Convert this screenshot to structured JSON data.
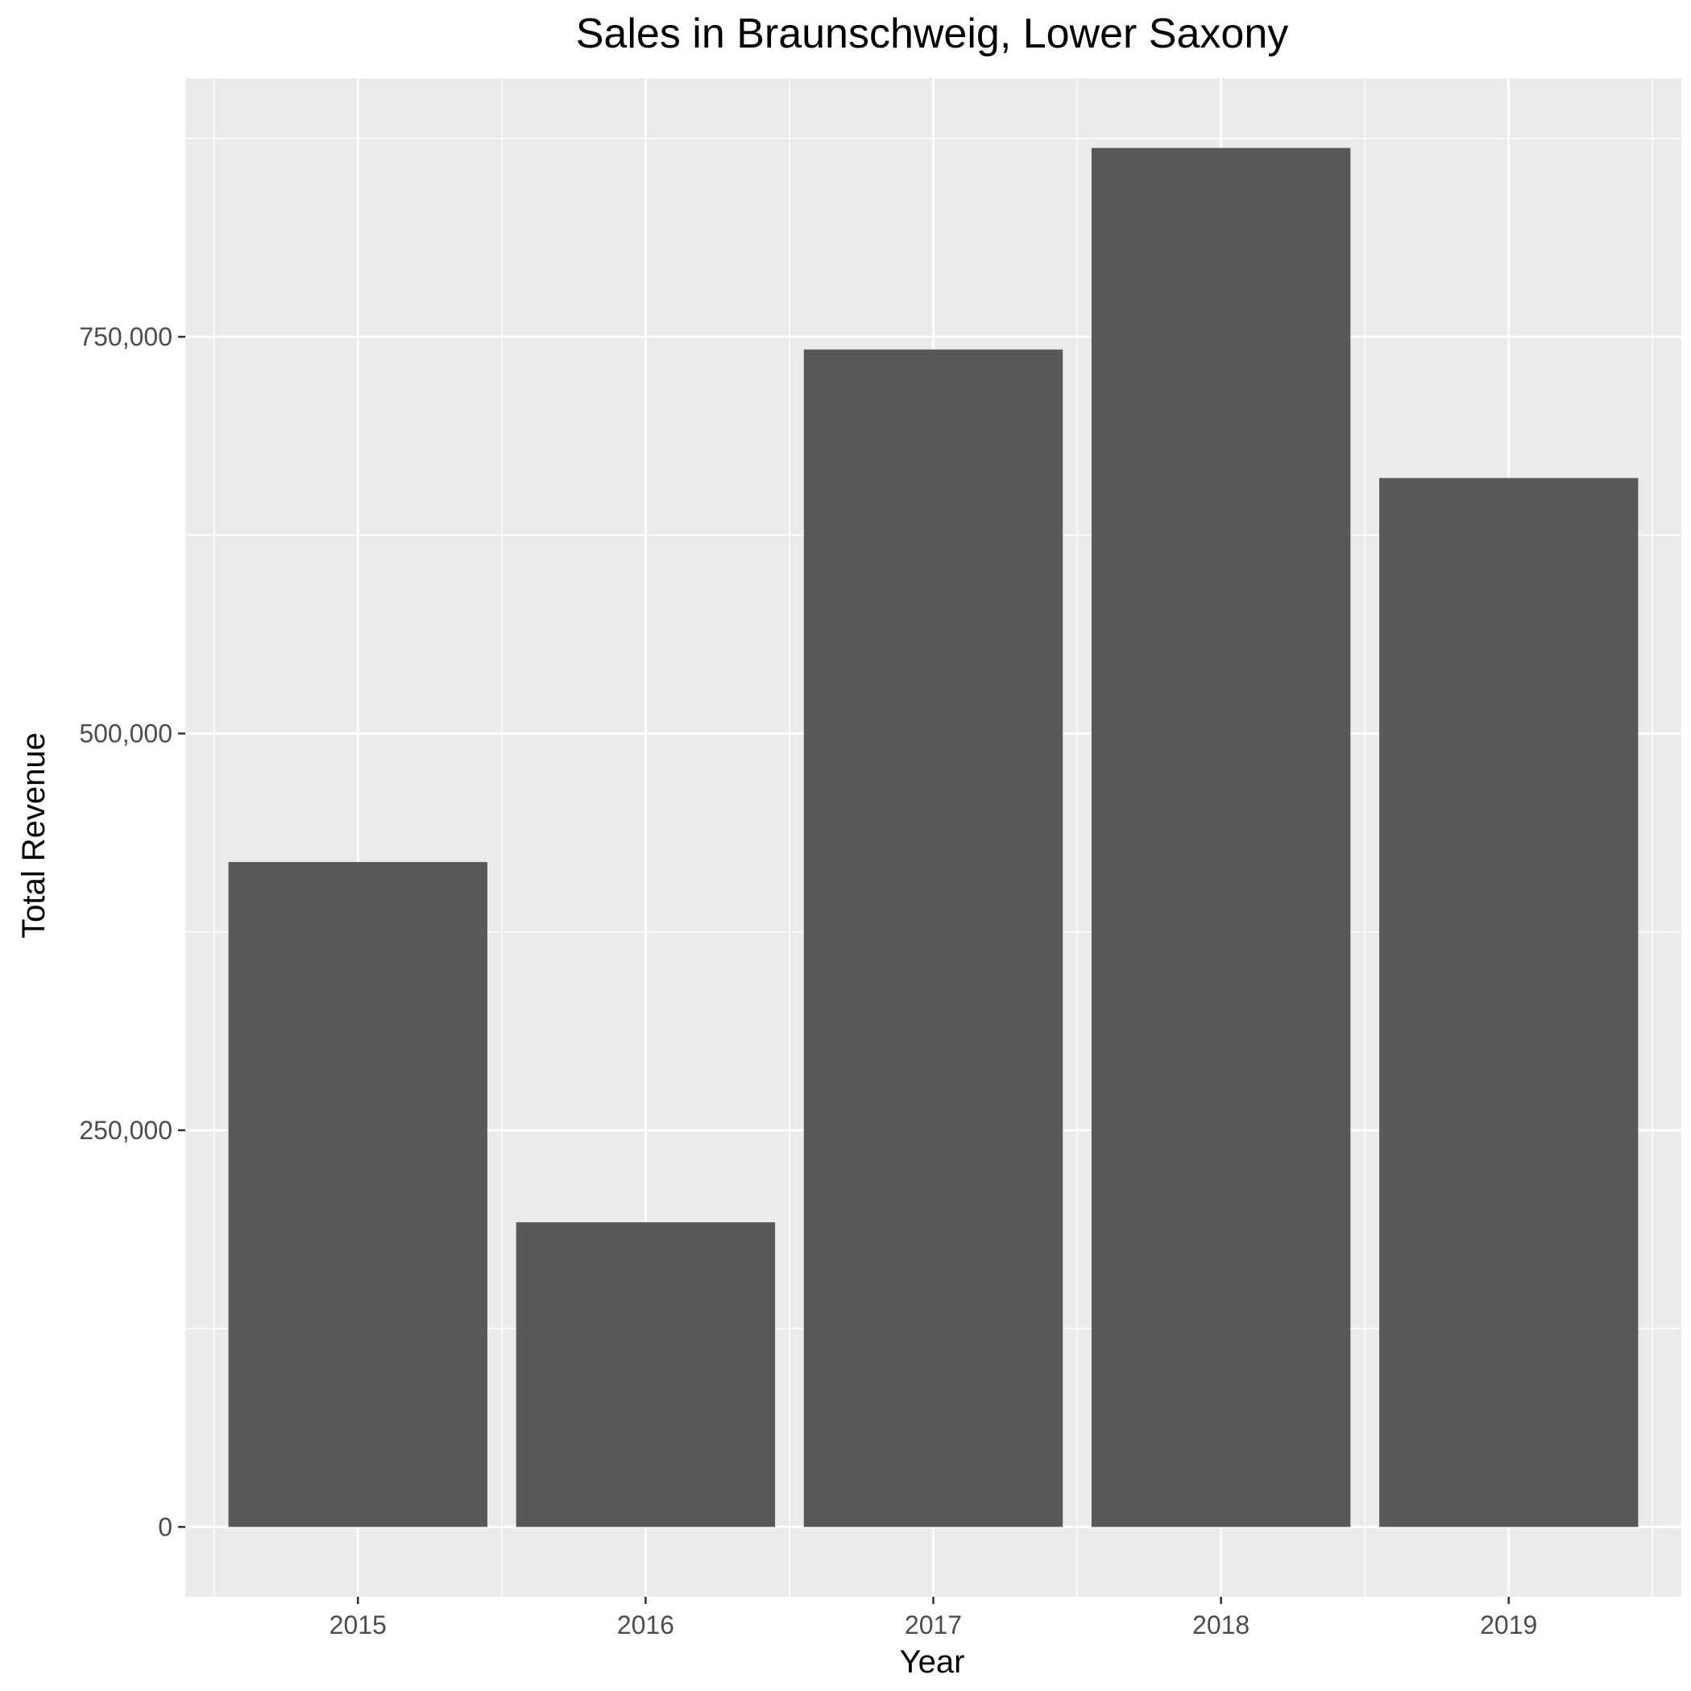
{
  "chart_data": {
    "type": "bar",
    "title": "Sales in Braunschweig, Lower Saxony",
    "xlabel": "Year",
    "ylabel": "Total Revenue",
    "categories": [
      "2015",
      "2016",
      "2017",
      "2018",
      "2019"
    ],
    "values": [
      419000,
      192000,
      742000,
      869000,
      661000
    ],
    "ylim": [
      -44000,
      913000
    ],
    "yticks": [
      0,
      250000,
      500000,
      750000
    ],
    "ytick_labels": [
      "0",
      "250,000",
      "500,000",
      "750,000"
    ],
    "grid": true,
    "legend": "none",
    "colors": {
      "bar": "#595959",
      "panel": "#ebebeb",
      "grid": "#ffffff",
      "tick_text": "#4d4d4d",
      "tick_mark": "#333333"
    }
  }
}
